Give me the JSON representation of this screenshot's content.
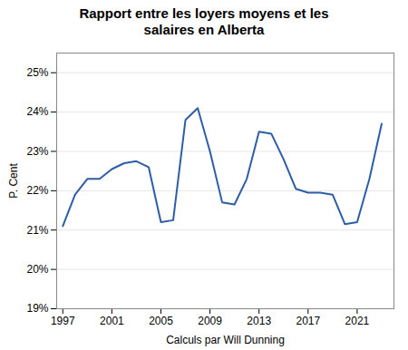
{
  "chart_data": {
    "type": "line",
    "title": "Rapport entre les loyers moyens et les\nsalaires en Alberta",
    "xlabel": "Calculs par Will Dunning",
    "ylabel": "P. Cent",
    "x": [
      1997,
      1998,
      1999,
      2000,
      2001,
      2002,
      2003,
      2004,
      2005,
      2006,
      2007,
      2008,
      2009,
      2010,
      2011,
      2012,
      2013,
      2014,
      2015,
      2016,
      2017,
      2018,
      2019,
      2020,
      2021,
      2022,
      2023
    ],
    "values": [
      21.1,
      21.9,
      22.3,
      22.3,
      22.55,
      22.7,
      22.75,
      22.6,
      21.2,
      21.25,
      23.8,
      24.1,
      23.0,
      21.7,
      21.65,
      22.3,
      23.5,
      23.45,
      22.8,
      22.05,
      21.95,
      21.95,
      21.9,
      21.15,
      21.2,
      22.3,
      23.7
    ],
    "color": "#2E5DA8",
    "xlim": [
      1996.5,
      2024.0
    ],
    "xticks": [
      1997,
      2001,
      2005,
      2009,
      2013,
      2017,
      2021
    ],
    "ylim": [
      19.0,
      25.5
    ],
    "yticks": [
      {
        "value": 19,
        "label": "19%"
      },
      {
        "value": 20,
        "label": "20%"
      },
      {
        "value": 21,
        "label": "21%"
      },
      {
        "value": 22,
        "label": "22%"
      },
      {
        "value": 23,
        "label": "23%"
      },
      {
        "value": 24,
        "label": "24%"
      },
      {
        "value": 25,
        "label": "25%"
      }
    ],
    "grid": true
  }
}
